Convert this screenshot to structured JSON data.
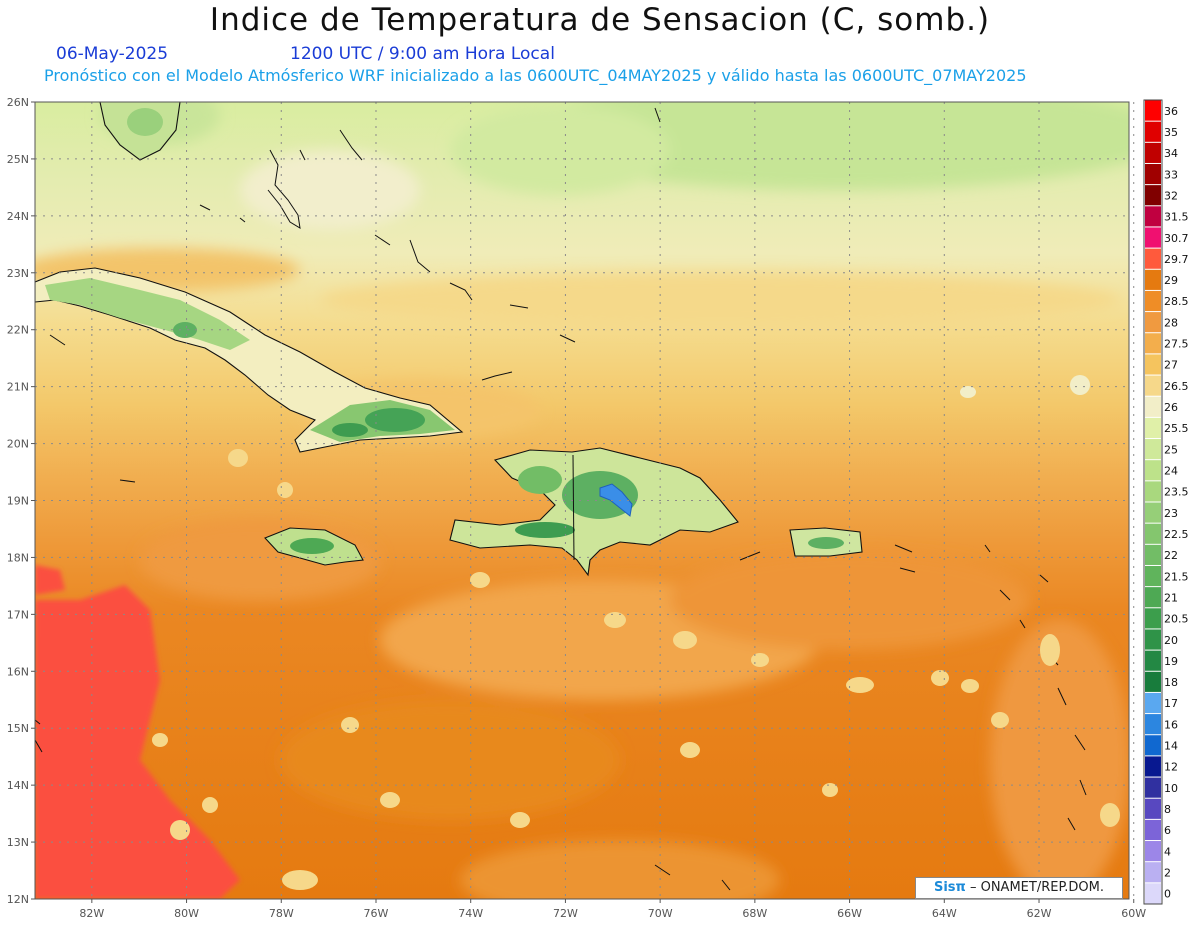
{
  "header": {
    "title": "Indice de Temperatura de Sensacion (C, somb.)",
    "date": "06-May-2025",
    "time": "1200 UTC / 9:00 am Hora Local",
    "forecast": "Pronóstico con el Modelo Atmósferico WRF inicializado a las 0600UTC_04MAY2025 y válido hasta las  0600UTC_07MAY2025"
  },
  "map": {
    "lat_labels": [
      "26N",
      "25N",
      "24N",
      "23N",
      "22N",
      "21N",
      "20N",
      "19N",
      "18N",
      "17N",
      "16N",
      "15N",
      "14N",
      "13N",
      "12N"
    ],
    "lon_labels": [
      "82W",
      "80W",
      "78W",
      "76W",
      "74W",
      "72W",
      "70W",
      "68W",
      "66W",
      "64W",
      "62W",
      "60W"
    ],
    "lat_range": [
      12,
      26
    ],
    "lon_range": [
      -83.2,
      -60.1
    ],
    "grid": "dotted"
  },
  "legend": {
    "levels": [
      "36",
      "35",
      "34",
      "33",
      "32",
      "31.5",
      "30.7",
      "29.7",
      "29",
      "28.5",
      "28",
      "27.5",
      "27",
      "26.5",
      "26",
      "25.5",
      "25",
      "24",
      "23.5",
      "23",
      "22.5",
      "22",
      "21.5",
      "21",
      "20.5",
      "20",
      "19",
      "18",
      "17",
      "16",
      "14",
      "12",
      "10",
      "8",
      "6",
      "4",
      "2",
      "0"
    ],
    "colors": [
      "#ff0000",
      "#e00000",
      "#c00000",
      "#a00000",
      "#800000",
      "#c00040",
      "#f01070",
      "#ff5a3c",
      "#e57a10",
      "#ef8d26",
      "#f09a40",
      "#f3ae4c",
      "#f5c45e",
      "#f6d88a",
      "#f2eec8",
      "#e0f0a8",
      "#cfe99a",
      "#bde28a",
      "#a9d87e",
      "#96cf78",
      "#84c66e",
      "#72bd66",
      "#60b45c",
      "#4ea954",
      "#3c9e4c",
      "#2f9348",
      "#238844",
      "#187c3c",
      "#5aa8f0",
      "#2c86e0",
      "#1068d0",
      "#081890",
      "#3030a0",
      "#5848c0",
      "#7c64d8",
      "#9c86e8",
      "#bab0f2",
      "#dcd8fa"
    ]
  },
  "credit": {
    "logo": "Sisπ",
    "text": "– ONAMET/REP.DOM."
  }
}
